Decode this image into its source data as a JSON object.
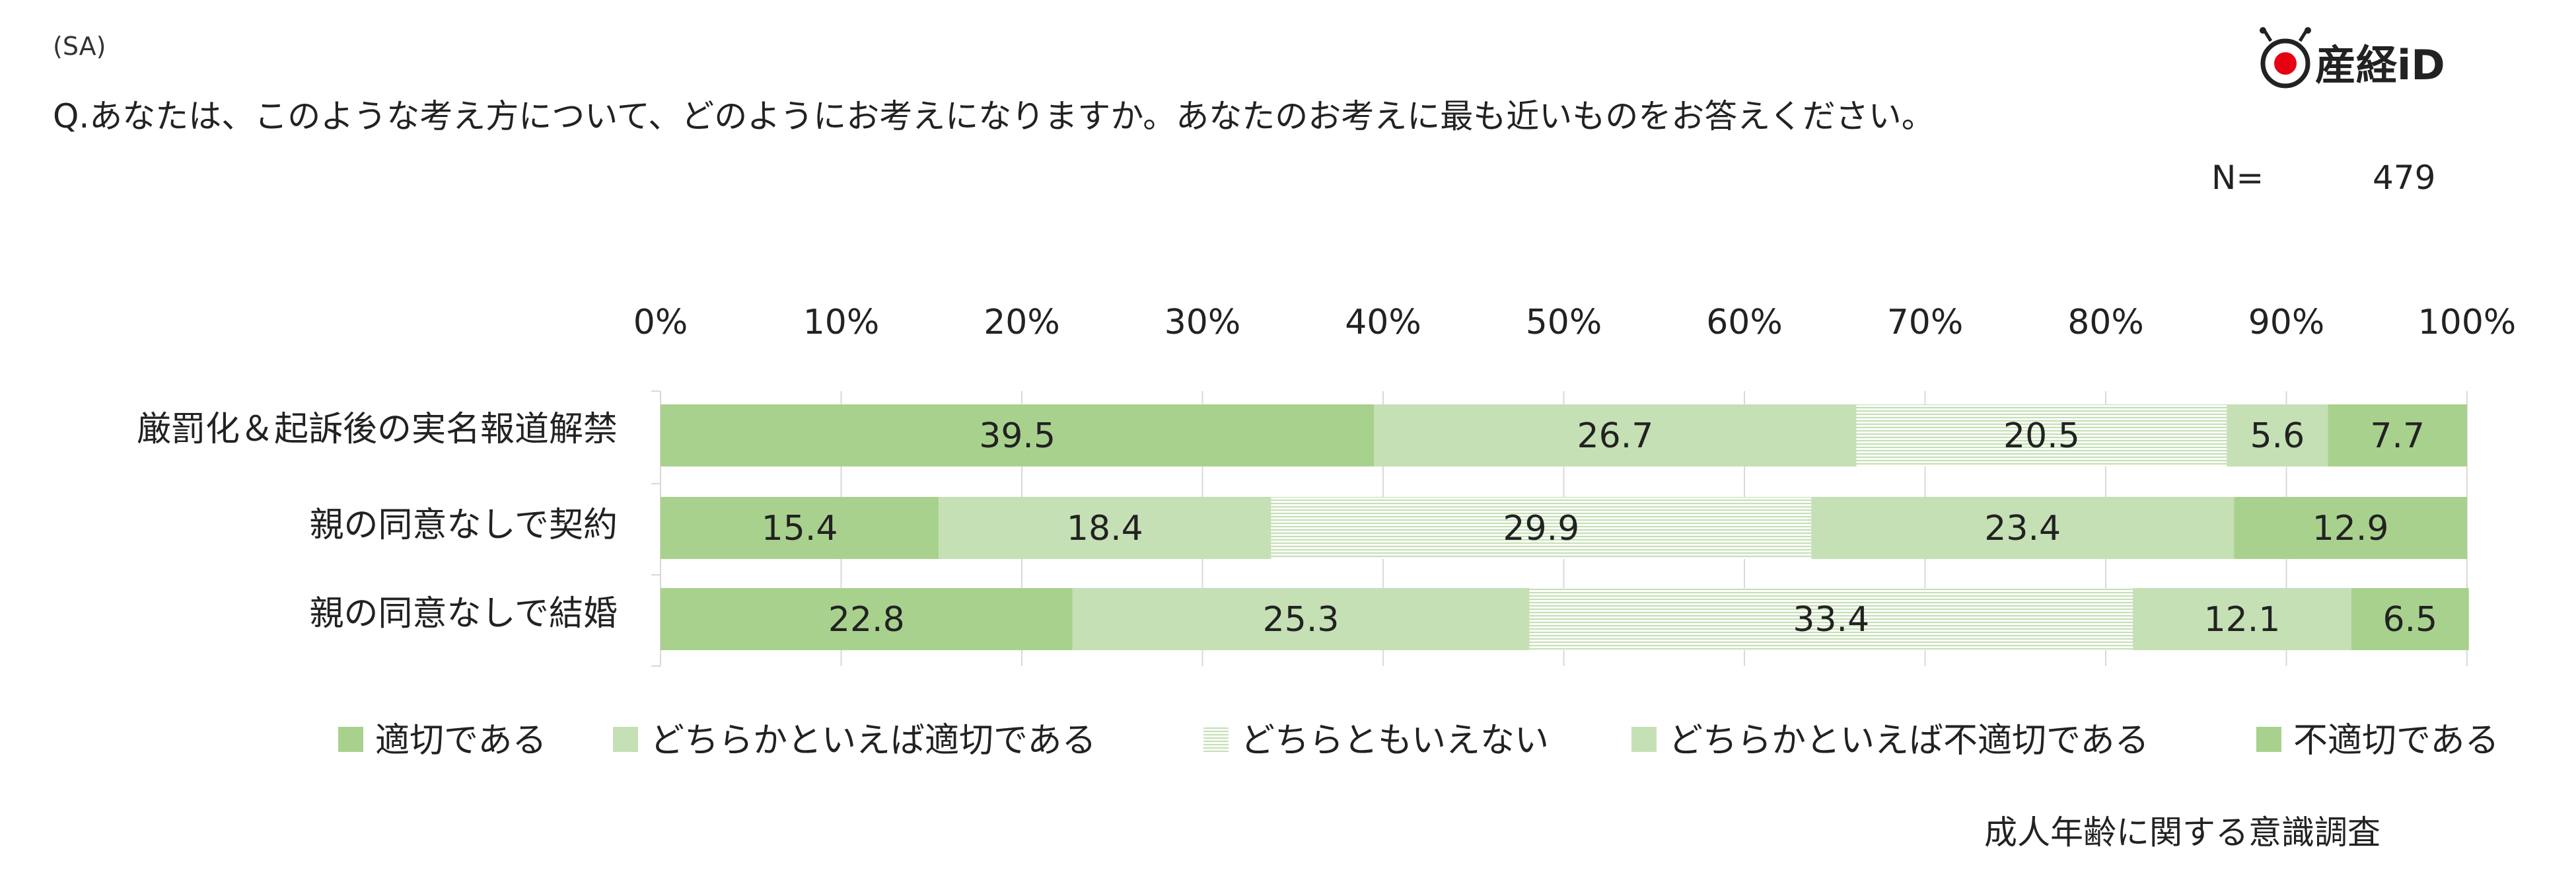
{
  "header": {
    "sa_label": "(SA)",
    "question": "Q.あなたは、このような考え方について、どのようにお考えになりますか。あなたのお考えに最も近いものをお答えください。",
    "n_label": "N=",
    "n_value": "479",
    "logo_text": "産経iD"
  },
  "footer": {
    "source": "成人年齢に関する意識調査"
  },
  "colors": {
    "solid_green": "#a9d18e",
    "light_green": "#c5e0b4",
    "hatch_line": "#c5e0b4",
    "grid": "#d9d9d9",
    "logo_red": "#e60012"
  },
  "chart_data": {
    "type": "bar",
    "orientation": "horizontal",
    "stacked": true,
    "percent": true,
    "xlim": [
      0,
      100
    ],
    "x_ticks": [
      "0%",
      "10%",
      "20%",
      "30%",
      "40%",
      "50%",
      "60%",
      "70%",
      "80%",
      "90%",
      "100%"
    ],
    "grid": true,
    "legend_position": "bottom",
    "categories": [
      "厳罰化＆起訴後の実名報道解禁",
      "親の同意なしで契約",
      "親の同意なしで結婚"
    ],
    "series": [
      {
        "name": "適切である",
        "fill": "solid",
        "values": [
          39.5,
          15.4,
          22.8
        ],
        "labels": [
          "39.5",
          "15.4",
          "22.8"
        ]
      },
      {
        "name": "どちらかといえば適切である",
        "fill": "light",
        "values": [
          26.7,
          18.4,
          25.3
        ],
        "labels": [
          "26.7",
          "18.4",
          "25.3"
        ]
      },
      {
        "name": "どちらともいえない",
        "fill": "hatched",
        "values": [
          20.5,
          29.9,
          33.4
        ],
        "labels": [
          "20.5",
          "29.9",
          "33.4"
        ]
      },
      {
        "name": "どちらかといえば不適切である",
        "fill": "light",
        "values": [
          5.6,
          23.4,
          12.1
        ],
        "labels": [
          "5.6",
          "23.4",
          "12.1"
        ]
      },
      {
        "name": "不適切である",
        "fill": "solid",
        "values": [
          7.7,
          12.9,
          6.5
        ],
        "labels": [
          "7.7",
          "12.9",
          "6.5"
        ]
      }
    ]
  }
}
